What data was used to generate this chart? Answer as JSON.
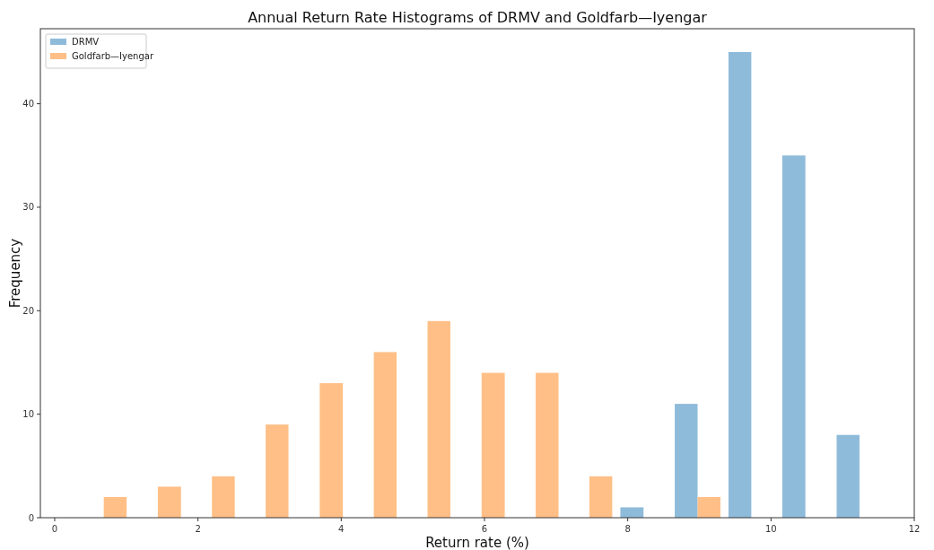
{
  "chart_data": {
    "type": "histogram",
    "title": "Annual Return Rate Histograms of DRMV and Goldfarb—Iyengar",
    "xlabel": "Return rate (%)",
    "ylabel": "Frequency",
    "bins": [
      0.31,
      1.06,
      1.82,
      2.57,
      3.32,
      4.08,
      4.83,
      5.58,
      6.34,
      7.09,
      7.84,
      8.6,
      9.35,
      10.1,
      10.86,
      11.61
    ],
    "series": [
      {
        "name": "DRMV",
        "color": "#8fbbda",
        "values": [
          0,
          0,
          0,
          0,
          0,
          0,
          0,
          0,
          0,
          0,
          1,
          11,
          45,
          35,
          8
        ]
      },
      {
        "name": "Goldfarb—Iyengar",
        "color": "#ffbf86",
        "values": [
          2,
          3,
          4,
          9,
          13,
          16,
          19,
          14,
          14,
          4,
          0,
          2,
          0,
          0,
          0
        ]
      }
    ],
    "xlim": [
      -0.2,
      12.0
    ],
    "xticks": [
      0,
      2,
      4,
      6,
      8,
      10,
      12
    ],
    "ylim": [
      0,
      47.25
    ],
    "yticks": [
      0,
      10,
      20,
      30,
      40
    ],
    "grid": false,
    "legend": "top left"
  }
}
